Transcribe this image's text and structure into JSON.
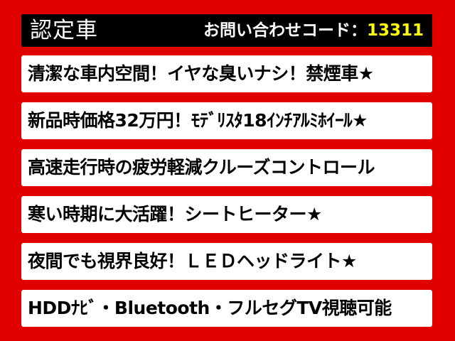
{
  "header": {
    "title": "認定車",
    "code_label": "お問い合わせコード：",
    "code_value": "13311",
    "code_color": "#ffff00"
  },
  "features": [
    "清潔な車内空間！イヤな臭いナシ！禁煙車★",
    "新品時価格32万円！ﾓﾃﾞﾘｽﾀ18ｲﾝﾁｱﾙﾐﾎｲｰﾙ★",
    "高速走行時の疲労軽減クルーズコントロール",
    "寒い時期に大活躍！シートヒーター★",
    "夜間でも視界良好！ＬＥＤヘッドライト★",
    "HDDﾅﾋﾞ・Bluetooth・フルセグTV視聴可能"
  ],
  "colors": {
    "background": "#e00000",
    "header": "#000000",
    "panel": "#ffffff"
  }
}
